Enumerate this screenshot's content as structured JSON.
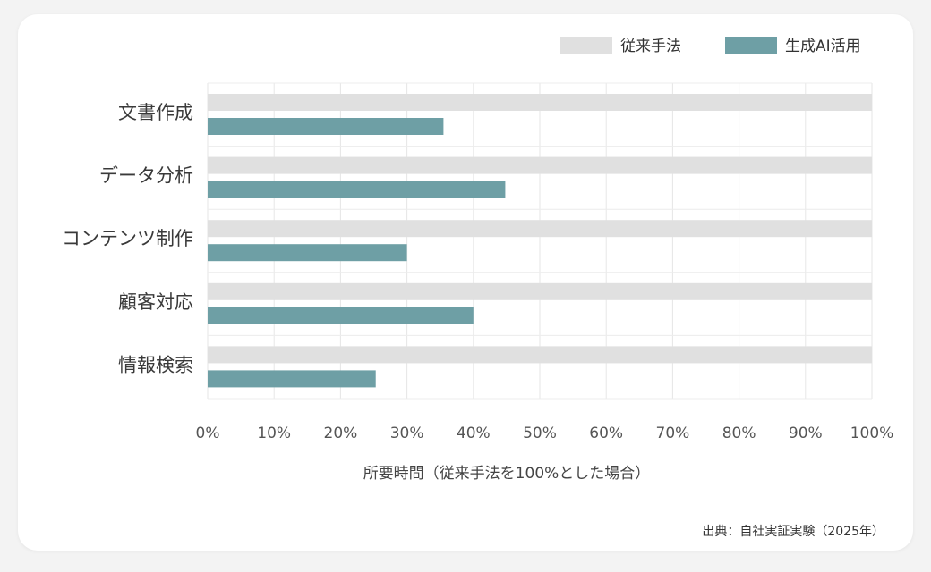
{
  "chart_data": {
    "type": "bar",
    "orientation": "horizontal",
    "categories": [
      "文書作成",
      "データ分析",
      "コンテンツ制作",
      "顧客対応",
      "情報検索"
    ],
    "series": [
      {
        "name": "従来手法",
        "values": [
          100,
          100,
          100,
          100,
          100
        ],
        "color": "#e0e0e0"
      },
      {
        "name": "生成AI活用",
        "values": [
          35.5,
          44.8,
          30,
          40,
          25.3
        ],
        "color": "#6e9fa5"
      }
    ],
    "xlabel": "所要時間（従来手法を100%とした場合）",
    "xlim": [
      0,
      100
    ],
    "xticks": [
      "0%",
      "10%",
      "20%",
      "30%",
      "40%",
      "50%",
      "60%",
      "70%",
      "80%",
      "90%",
      "100%"
    ],
    "grid": true,
    "legend_position": "top-right"
  },
  "source_note": "出典：自社実証実験（2025年）"
}
